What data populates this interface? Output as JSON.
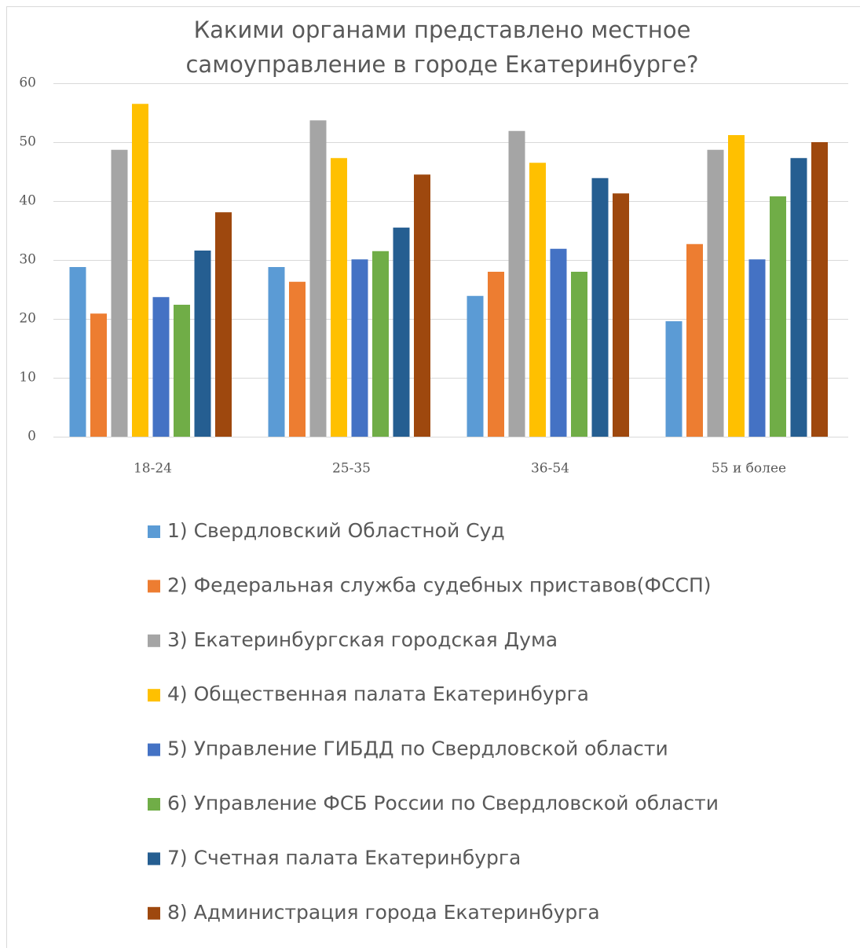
{
  "chart_data": {
    "type": "bar",
    "title": [
      "Какими органами представлено местное",
      "самоуправление в городе Екатеринбурге?"
    ],
    "categories": [
      "18-24",
      "25-35",
      "36-54",
      "55 и более"
    ],
    "series": [
      {
        "name": "1) Свердловский Областной Суд",
        "color": "#5b9bd5",
        "values": [
          28.8,
          28.8,
          23.9,
          19.6
        ]
      },
      {
        "name": "2) Федеральная служба судебных приставов(ФССП)",
        "color": "#ed7d31",
        "values": [
          20.9,
          26.3,
          28,
          32.7
        ]
      },
      {
        "name": "3) Екатеринбургская городская Дума",
        "color": "#a5a5a5",
        "values": [
          48.7,
          53.7,
          51.9,
          48.7
        ]
      },
      {
        "name": "4) Общественная палата Екатеринбурга",
        "color": "#ffc000",
        "values": [
          56.5,
          47.3,
          46.5,
          51.2
        ]
      },
      {
        "name": "5) Управление ГИБДД по Свердловской области",
        "color": "#4472c4",
        "values": [
          23.7,
          30.1,
          31.9,
          30.1
        ]
      },
      {
        "name": "6) Управление ФСБ России по Свердловской области",
        "color": "#70ad47",
        "values": [
          22.4,
          31.5,
          28,
          40.8
        ]
      },
      {
        "name": "7) Счетная палата Екатеринбурга",
        "color": "#255e91",
        "values": [
          31.6,
          35.5,
          43.9,
          47.3
        ]
      },
      {
        "name": "8) Администрация города Екатеринбурга",
        "color": "#9e480e",
        "values": [
          38.1,
          44.5,
          41.3,
          50
        ]
      }
    ],
    "ylim": [
      0,
      60
    ],
    "yticks": [
      0,
      10,
      20,
      30,
      40,
      50,
      60
    ],
    "grid": true,
    "legend": "bottom"
  }
}
